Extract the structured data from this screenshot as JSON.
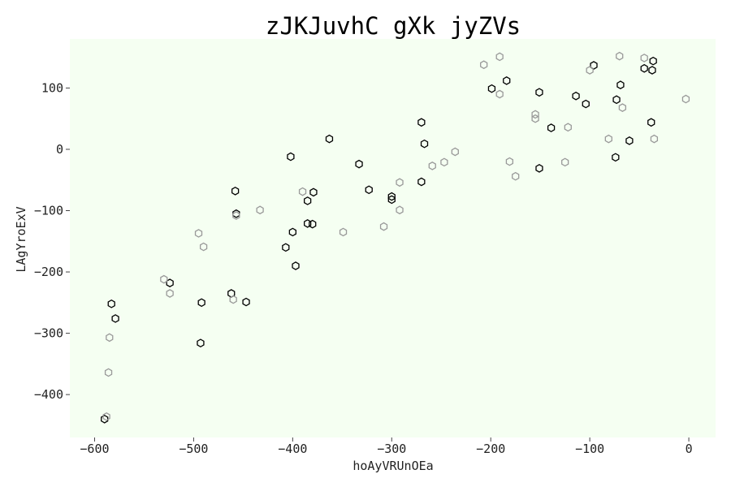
{
  "chart_data": {
    "type": "scatter",
    "title": "zJKJuvhC gXk jyZVs",
    "xlabel": "hoAyVRUnOEa",
    "ylabel": "LAgYroExV",
    "xlim": [
      -625,
      27
    ],
    "ylim": [
      -470,
      180
    ],
    "x_ticks": [
      -600,
      -500,
      -400,
      -300,
      -200,
      -100,
      0
    ],
    "y_ticks": [
      -400,
      -300,
      -200,
      -100,
      0,
      100
    ],
    "x_tick_labels": [
      "−600",
      "−500",
      "−400",
      "−300",
      "−200",
      "−100",
      "0"
    ],
    "y_tick_labels": [
      "−400",
      "−300",
      "−200",
      "−100",
      "0",
      "100"
    ],
    "grid": false,
    "plot_background": "#f5fff2",
    "marker": "hexagon",
    "series": [
      {
        "color": "#000000",
        "points": [
          [
            -590,
            -440
          ],
          [
            -583,
            -252
          ],
          [
            -579,
            -276
          ],
          [
            -524,
            -218
          ],
          [
            -492,
            -250
          ],
          [
            -493,
            -316
          ],
          [
            -462,
            -235
          ],
          [
            -458,
            -68
          ],
          [
            -457,
            -105
          ],
          [
            -447,
            -249
          ],
          [
            -407,
            -160
          ],
          [
            -402,
            -12
          ],
          [
            -400,
            -135
          ],
          [
            -397,
            -190
          ],
          [
            -385,
            -84
          ],
          [
            -385,
            -121
          ],
          [
            -380,
            -122
          ],
          [
            -379,
            -70
          ],
          [
            -363,
            17
          ],
          [
            -333,
            -24
          ],
          [
            -323,
            -66
          ],
          [
            -300,
            -82
          ],
          [
            -300,
            -77
          ],
          [
            -270,
            44
          ],
          [
            -270,
            -53
          ],
          [
            -267,
            9
          ],
          [
            -199,
            99
          ],
          [
            -184,
            112
          ],
          [
            -151,
            93
          ],
          [
            -151,
            -31
          ],
          [
            -139,
            35
          ],
          [
            -114,
            87
          ],
          [
            -104,
            74
          ],
          [
            -96,
            137
          ],
          [
            -74,
            -13
          ],
          [
            -73,
            81
          ],
          [
            -69,
            105
          ],
          [
            -60,
            14
          ],
          [
            -45,
            132
          ],
          [
            -38,
            44
          ],
          [
            -37,
            129
          ],
          [
            -36,
            144
          ]
        ]
      },
      {
        "color": "#999999",
        "points": [
          [
            -588,
            -436
          ],
          [
            -586,
            -364
          ],
          [
            -585,
            -307
          ],
          [
            -530,
            -212
          ],
          [
            -524,
            -235
          ],
          [
            -495,
            -137
          ],
          [
            -490,
            -159
          ],
          [
            -460,
            -245
          ],
          [
            -457,
            -108
          ],
          [
            -433,
            -99
          ],
          [
            -390,
            -69
          ],
          [
            -349,
            -135
          ],
          [
            -308,
            -126
          ],
          [
            -292,
            -54
          ],
          [
            -292,
            -99
          ],
          [
            -259,
            -27
          ],
          [
            -247,
            -21
          ],
          [
            -236,
            -4
          ],
          [
            -207,
            138
          ],
          [
            -191,
            90
          ],
          [
            -191,
            151
          ],
          [
            -181,
            -20
          ],
          [
            -175,
            -44
          ],
          [
            -155,
            50
          ],
          [
            -155,
            57
          ],
          [
            -125,
            -21
          ],
          [
            -122,
            36
          ],
          [
            -100,
            129
          ],
          [
            -81,
            17
          ],
          [
            -70,
            152
          ],
          [
            -67,
            68
          ],
          [
            -45,
            149
          ],
          [
            -35,
            17
          ],
          [
            -3,
            82
          ]
        ]
      }
    ]
  }
}
